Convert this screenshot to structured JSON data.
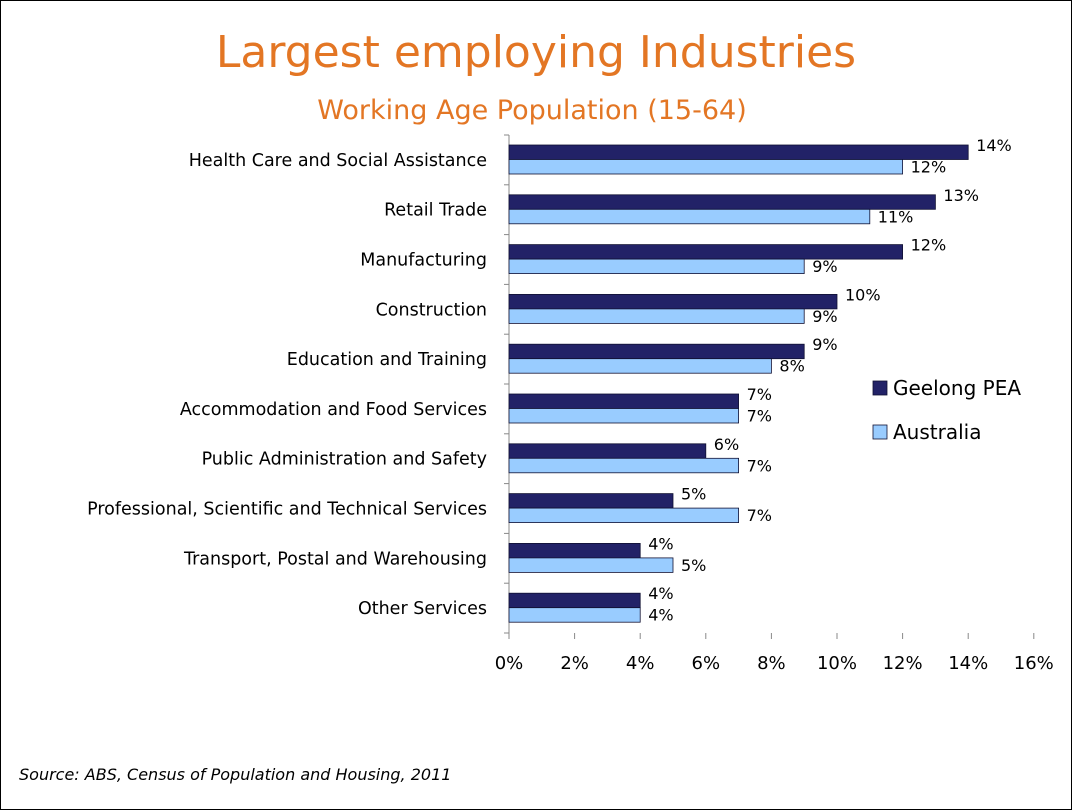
{
  "title": "Largest employing Industries",
  "subtitle": "Working Age Population (15-64)",
  "source": "Source: ABS, Census of Population and Housing, 2011",
  "colors": {
    "title": "#e37624",
    "geelong": "#222267",
    "australia": "#99ccff"
  },
  "chart_data": {
    "type": "bar",
    "orientation": "horizontal",
    "title": "Largest employing Industries",
    "subtitle": "Working Age Population (15-64)",
    "categories": [
      "Health Care and Social Assistance",
      "Retail Trade",
      "Manufacturing",
      "Construction",
      "Education and Training",
      "Accommodation and Food Services",
      "Public Administration and Safety",
      "Professional, Scientific and Technical Services",
      "Transport, Postal and Warehousing",
      "Other Services"
    ],
    "series": [
      {
        "name": "Geelong PEA",
        "color": "#222267",
        "values": [
          14,
          13,
          12,
          10,
          9,
          7,
          6,
          5,
          4,
          4
        ],
        "labels": [
          "14%",
          "13%",
          "12%",
          "10%",
          "9%",
          "7%",
          "6%",
          "5%",
          "4%",
          "4%"
        ]
      },
      {
        "name": "Australia",
        "color": "#99ccff",
        "values": [
          12,
          11,
          9,
          9,
          8,
          7,
          7,
          7,
          5,
          4
        ],
        "labels": [
          "12%",
          "11%",
          "9%",
          "9%",
          "8%",
          "7%",
          "7%",
          "7%",
          "5%",
          "4%"
        ]
      }
    ],
    "xlim": [
      0,
      16
    ],
    "xticks": [
      0,
      2,
      4,
      6,
      8,
      10,
      12,
      14,
      16
    ],
    "xtick_labels": [
      "0%",
      "2%",
      "4%",
      "6%",
      "8%",
      "10%",
      "12%",
      "14%",
      "16%"
    ],
    "grid": false,
    "legend": "right"
  }
}
